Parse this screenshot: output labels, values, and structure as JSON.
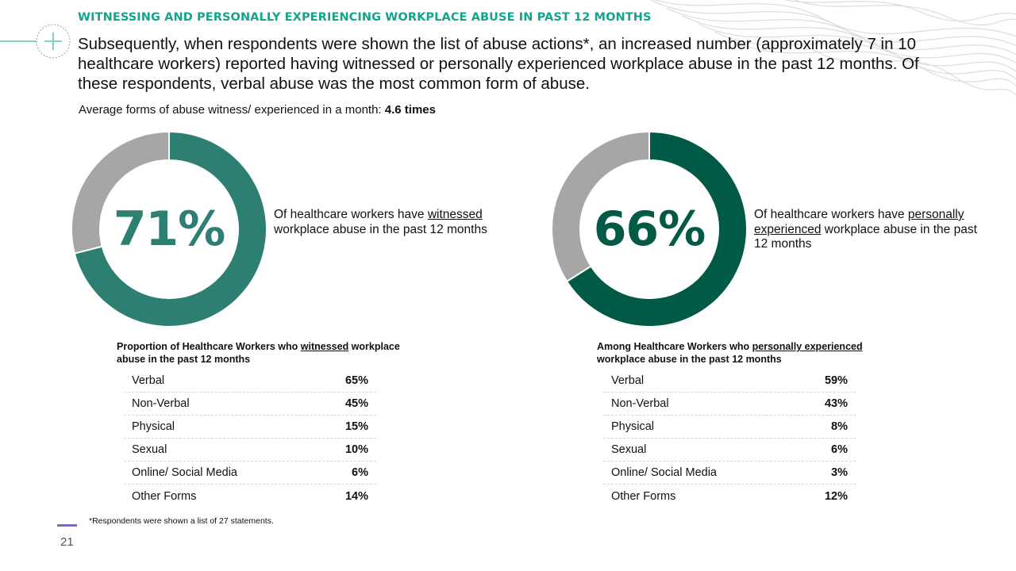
{
  "section_title": "WITNESSING AND PERSONALLY EXPERIENCING WORKPLACE ABUSE IN PAST 12 MONTHS",
  "intro": "Subsequently, when respondents were shown the list of abuse actions*, an increased number (approximately 7 in 10 healthcare workers) reported having witnessed or personally experienced workplace abuse in the past 12 months. Of these respondents, verbal abuse was the most common form of abuse.",
  "average": {
    "label": "Average forms of abuse witness/ experienced in a month: ",
    "value": "4.6 times"
  },
  "colors": {
    "title_accent": "#14a38b",
    "witnessed": "#2e7f73",
    "experienced": "#005a45",
    "remainder": "#a6a6a6",
    "footer_accent": "#8a5cd6"
  },
  "icons": {
    "decoration": "plus-circle-icon"
  },
  "chart_data": [
    {
      "type": "pie",
      "categories": [
        "",
        ""
      ],
      "values": [
        71,
        29
      ],
      "colors": [
        "#2e7f73",
        "#a6a6a6"
      ],
      "center_label": "71%",
      "caption": {
        "pre": "Of healthcare workers have ",
        "link": "witnessed",
        "post": " workplace abuse in the past 12 months"
      }
    },
    {
      "type": "pie",
      "categories": [
        "",
        ""
      ],
      "values": [
        66,
        34
      ],
      "colors": [
        "#005a45",
        "#a6a6a6"
      ],
      "center_label": "66%",
      "caption": {
        "pre": "Of healthcare workers have ",
        "link": "personally experienced",
        "post": " workplace abuse in the past 12 months"
      }
    },
    {
      "type": "table",
      "title": {
        "pre": "Proportion of Healthcare Workers who ",
        "link": "witnessed",
        "post": " workplace abuse in the past 12 months"
      },
      "rows": [
        {
          "label": "Verbal",
          "value": "65%"
        },
        {
          "label": "Non-Verbal",
          "value": "45%"
        },
        {
          "label": "Physical",
          "value": "15%"
        },
        {
          "label": "Sexual",
          "value": "10%"
        },
        {
          "label": "Online/ Social Media",
          "value": "6%"
        },
        {
          "label": "Other Forms",
          "value": "14%"
        }
      ]
    },
    {
      "type": "table",
      "title": {
        "pre": "Among Healthcare Workers who ",
        "link": "personally experienced",
        "post": " workplace abuse in the past 12 months"
      },
      "rows": [
        {
          "label": "Verbal",
          "value": "59%"
        },
        {
          "label": "Non-Verbal",
          "value": "43%"
        },
        {
          "label": "Physical",
          "value": "8%"
        },
        {
          "label": "Sexual",
          "value": "6%"
        },
        {
          "label": "Online/ Social Media",
          "value": "3%"
        },
        {
          "label": "Other Forms",
          "value": "12%"
        }
      ]
    }
  ],
  "footnote": "*Respondents were shown a list of 27 statements.",
  "page_number": "21"
}
